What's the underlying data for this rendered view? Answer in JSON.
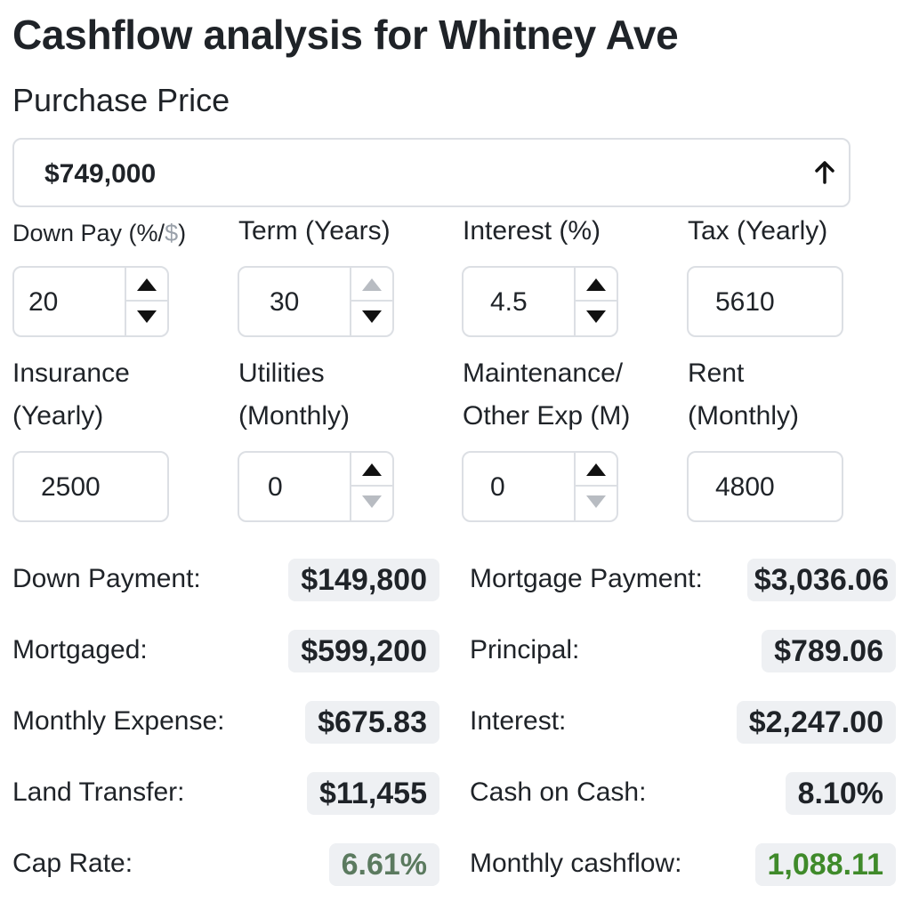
{
  "title": "Cashflow analysis for Whitney Ave",
  "purchase_price": {
    "label": "Purchase Price",
    "value": "$749,000"
  },
  "fields": {
    "down_pay": {
      "label_main": "Down Pay (%/",
      "label_dollar": "$",
      "label_end": ")",
      "value": "20"
    },
    "term": {
      "label": "Term (Years)",
      "value": "30"
    },
    "interest": {
      "label": "Interest (%)",
      "value": "4.5"
    },
    "tax": {
      "label": "Tax (Yearly)",
      "value": "5610"
    },
    "insurance": {
      "label_line1": "Insurance",
      "label_line2": "(Yearly)",
      "value": "2500"
    },
    "utilities": {
      "label_line1": "Utilities",
      "label_line2": "(Monthly)",
      "value": "0"
    },
    "maintenance": {
      "label_line1": "Maintenance/",
      "label_line2": "Other Exp (M)",
      "value": "0"
    },
    "rent": {
      "label_line1": "Rent",
      "label_line2": "(Monthly)",
      "value": "4800"
    }
  },
  "results": {
    "down_payment": {
      "label": "Down Payment:",
      "value": "$149,800"
    },
    "mortgaged": {
      "label": "Mortgaged:",
      "value": "$599,200"
    },
    "monthly_expense": {
      "label": "Monthly Expense:",
      "value": "$675.83"
    },
    "land_transfer": {
      "label": "Land Transfer:",
      "value": "$11,455"
    },
    "cap_rate": {
      "label": "Cap Rate:",
      "value": "6.61%"
    },
    "mortgage_payment": {
      "label": "Mortgage Payment:",
      "value": "$3,036.06"
    },
    "principal": {
      "label": "Principal:",
      "value": "$789.06"
    },
    "interest": {
      "label": "Interest:",
      "value": "$2,247.00"
    },
    "cash_on_cash": {
      "label": "Cash on Cash:",
      "value": "8.10%"
    },
    "monthly_cashflow": {
      "label": "Monthly cashflow:",
      "value": "1,088.11"
    }
  },
  "colors": {
    "cap_rate_text": "#5b7a5f",
    "cashflow_text": "#3f8a2a",
    "pill_bg": "#eef0f3",
    "border": "#dcdfe4"
  }
}
